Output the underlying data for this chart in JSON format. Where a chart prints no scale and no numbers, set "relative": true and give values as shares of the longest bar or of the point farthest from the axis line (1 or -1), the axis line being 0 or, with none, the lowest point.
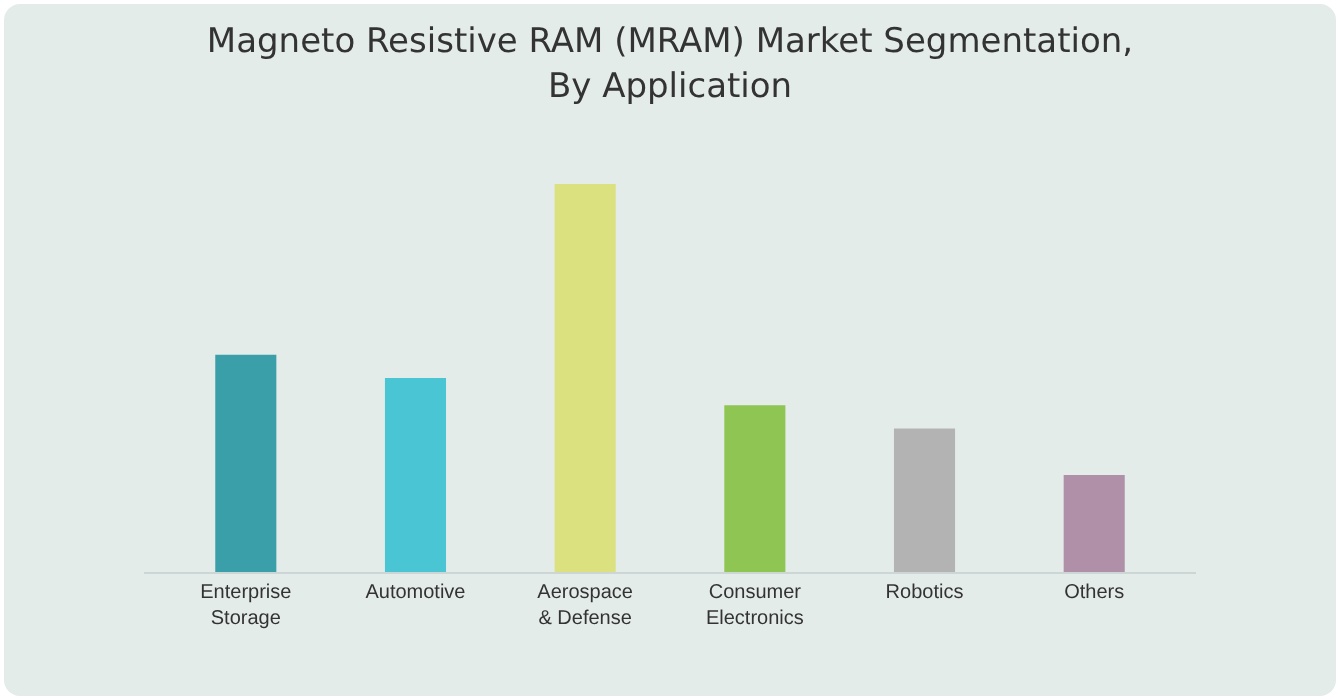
{
  "chart_data": {
    "type": "bar",
    "title": "Magneto Resistive RAM (MRAM) Market Segmentation,\nBy Application",
    "relative": true,
    "categories": [
      "Enterprise\nStorage",
      "Automotive",
      "Aerospace\n& Defense",
      "Consumer\nElectronics",
      "Robotics",
      "Others"
    ],
    "values": [
      0.56,
      0.5,
      1,
      0.43,
      0.37,
      0.25
    ],
    "colors": [
      "#3a9fa8",
      "#4ac5d4",
      "#dce17f",
      "#8fc552",
      "#b3b3b3",
      "#b090a8"
    ]
  }
}
